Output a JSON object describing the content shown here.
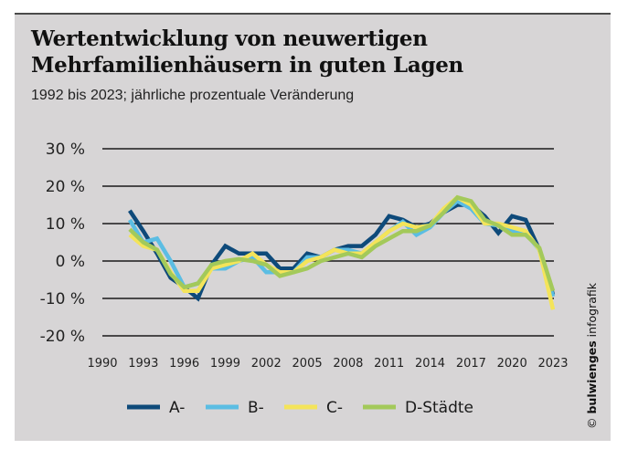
{
  "header": {
    "title": "Wertentwicklung von neuwertigen Mehrfamilienhäusern in guten Lagen",
    "subtitle": "1992 bis 2023; jährliche prozentuale Veränderung"
  },
  "credit": {
    "symbol": "©",
    "brand": "bulwienges",
    "suffix": "infografik"
  },
  "chart_data": {
    "type": "line",
    "title": "Wertentwicklung von neuwertigen Mehrfamilienhäusern in guten Lagen",
    "subtitle": "1992 bis 2023; jährliche prozentuale Veränderung",
    "xlabel": "",
    "ylabel": "",
    "xlim": [
      1990,
      2023
    ],
    "ylim": [
      -20,
      30
    ],
    "x_ticks": [
      1990,
      1993,
      1996,
      1999,
      2002,
      2005,
      2008,
      2011,
      2014,
      2017,
      2020,
      2023
    ],
    "y_ticks": [
      30,
      20,
      10,
      0,
      -10,
      -20
    ],
    "y_tick_labels": [
      "30 %",
      "20 %",
      "10 %",
      "0 %",
      "-10 %",
      "-20 %"
    ],
    "grid": "horizontal",
    "legend_position": "bottom",
    "x": [
      1992,
      1993,
      1994,
      1995,
      1996,
      1997,
      1998,
      1999,
      2000,
      2001,
      2002,
      2003,
      2004,
      2005,
      2006,
      2007,
      2008,
      2009,
      2010,
      2011,
      2012,
      2013,
      2014,
      2015,
      2016,
      2017,
      2018,
      2019,
      2020,
      2021,
      2022,
      2023
    ],
    "series": [
      {
        "name": "A-",
        "color": "#0e4a7a",
        "values": [
          13.5,
          8,
          2,
          -4.5,
          -7,
          -10,
          -1,
          4,
          2,
          2,
          2,
          -2,
          -2,
          2,
          1,
          3,
          4,
          4,
          7,
          12,
          11,
          9,
          10,
          13,
          15,
          15,
          12,
          7.5,
          12,
          11,
          3,
          -9
        ]
      },
      {
        "name": "B-",
        "color": "#5bbde3",
        "values": [
          11,
          5,
          6,
          0,
          -7,
          -6,
          -2,
          -2,
          0,
          1,
          -3,
          -3,
          -3,
          1,
          1,
          3,
          3,
          2,
          5,
          8,
          10.5,
          7,
          9,
          13,
          16,
          14,
          10,
          9.5,
          8,
          7.5,
          3,
          -9.5
        ]
      },
      {
        "name": "C-",
        "color": "#f4e45a",
        "values": [
          7,
          4,
          3,
          -3,
          -8,
          -8,
          -2,
          -1,
          0,
          2,
          -1,
          -3,
          -3,
          0,
          1,
          3,
          2,
          2,
          5,
          8,
          10,
          9,
          9.5,
          14,
          17,
          15,
          10,
          10,
          9,
          8,
          3,
          -13
        ]
      },
      {
        "name": "D-Städte",
        "color": "#a3c95a",
        "values": [
          8.5,
          5,
          3,
          -3.5,
          -7,
          -6,
          -1,
          0,
          0.5,
          0,
          -1,
          -4,
          -3,
          -2,
          0,
          1,
          2,
          1,
          4,
          6,
          8,
          8,
          9.5,
          13,
          17,
          16,
          11,
          9.5,
          7,
          7,
          3.5,
          -8
        ]
      }
    ]
  }
}
